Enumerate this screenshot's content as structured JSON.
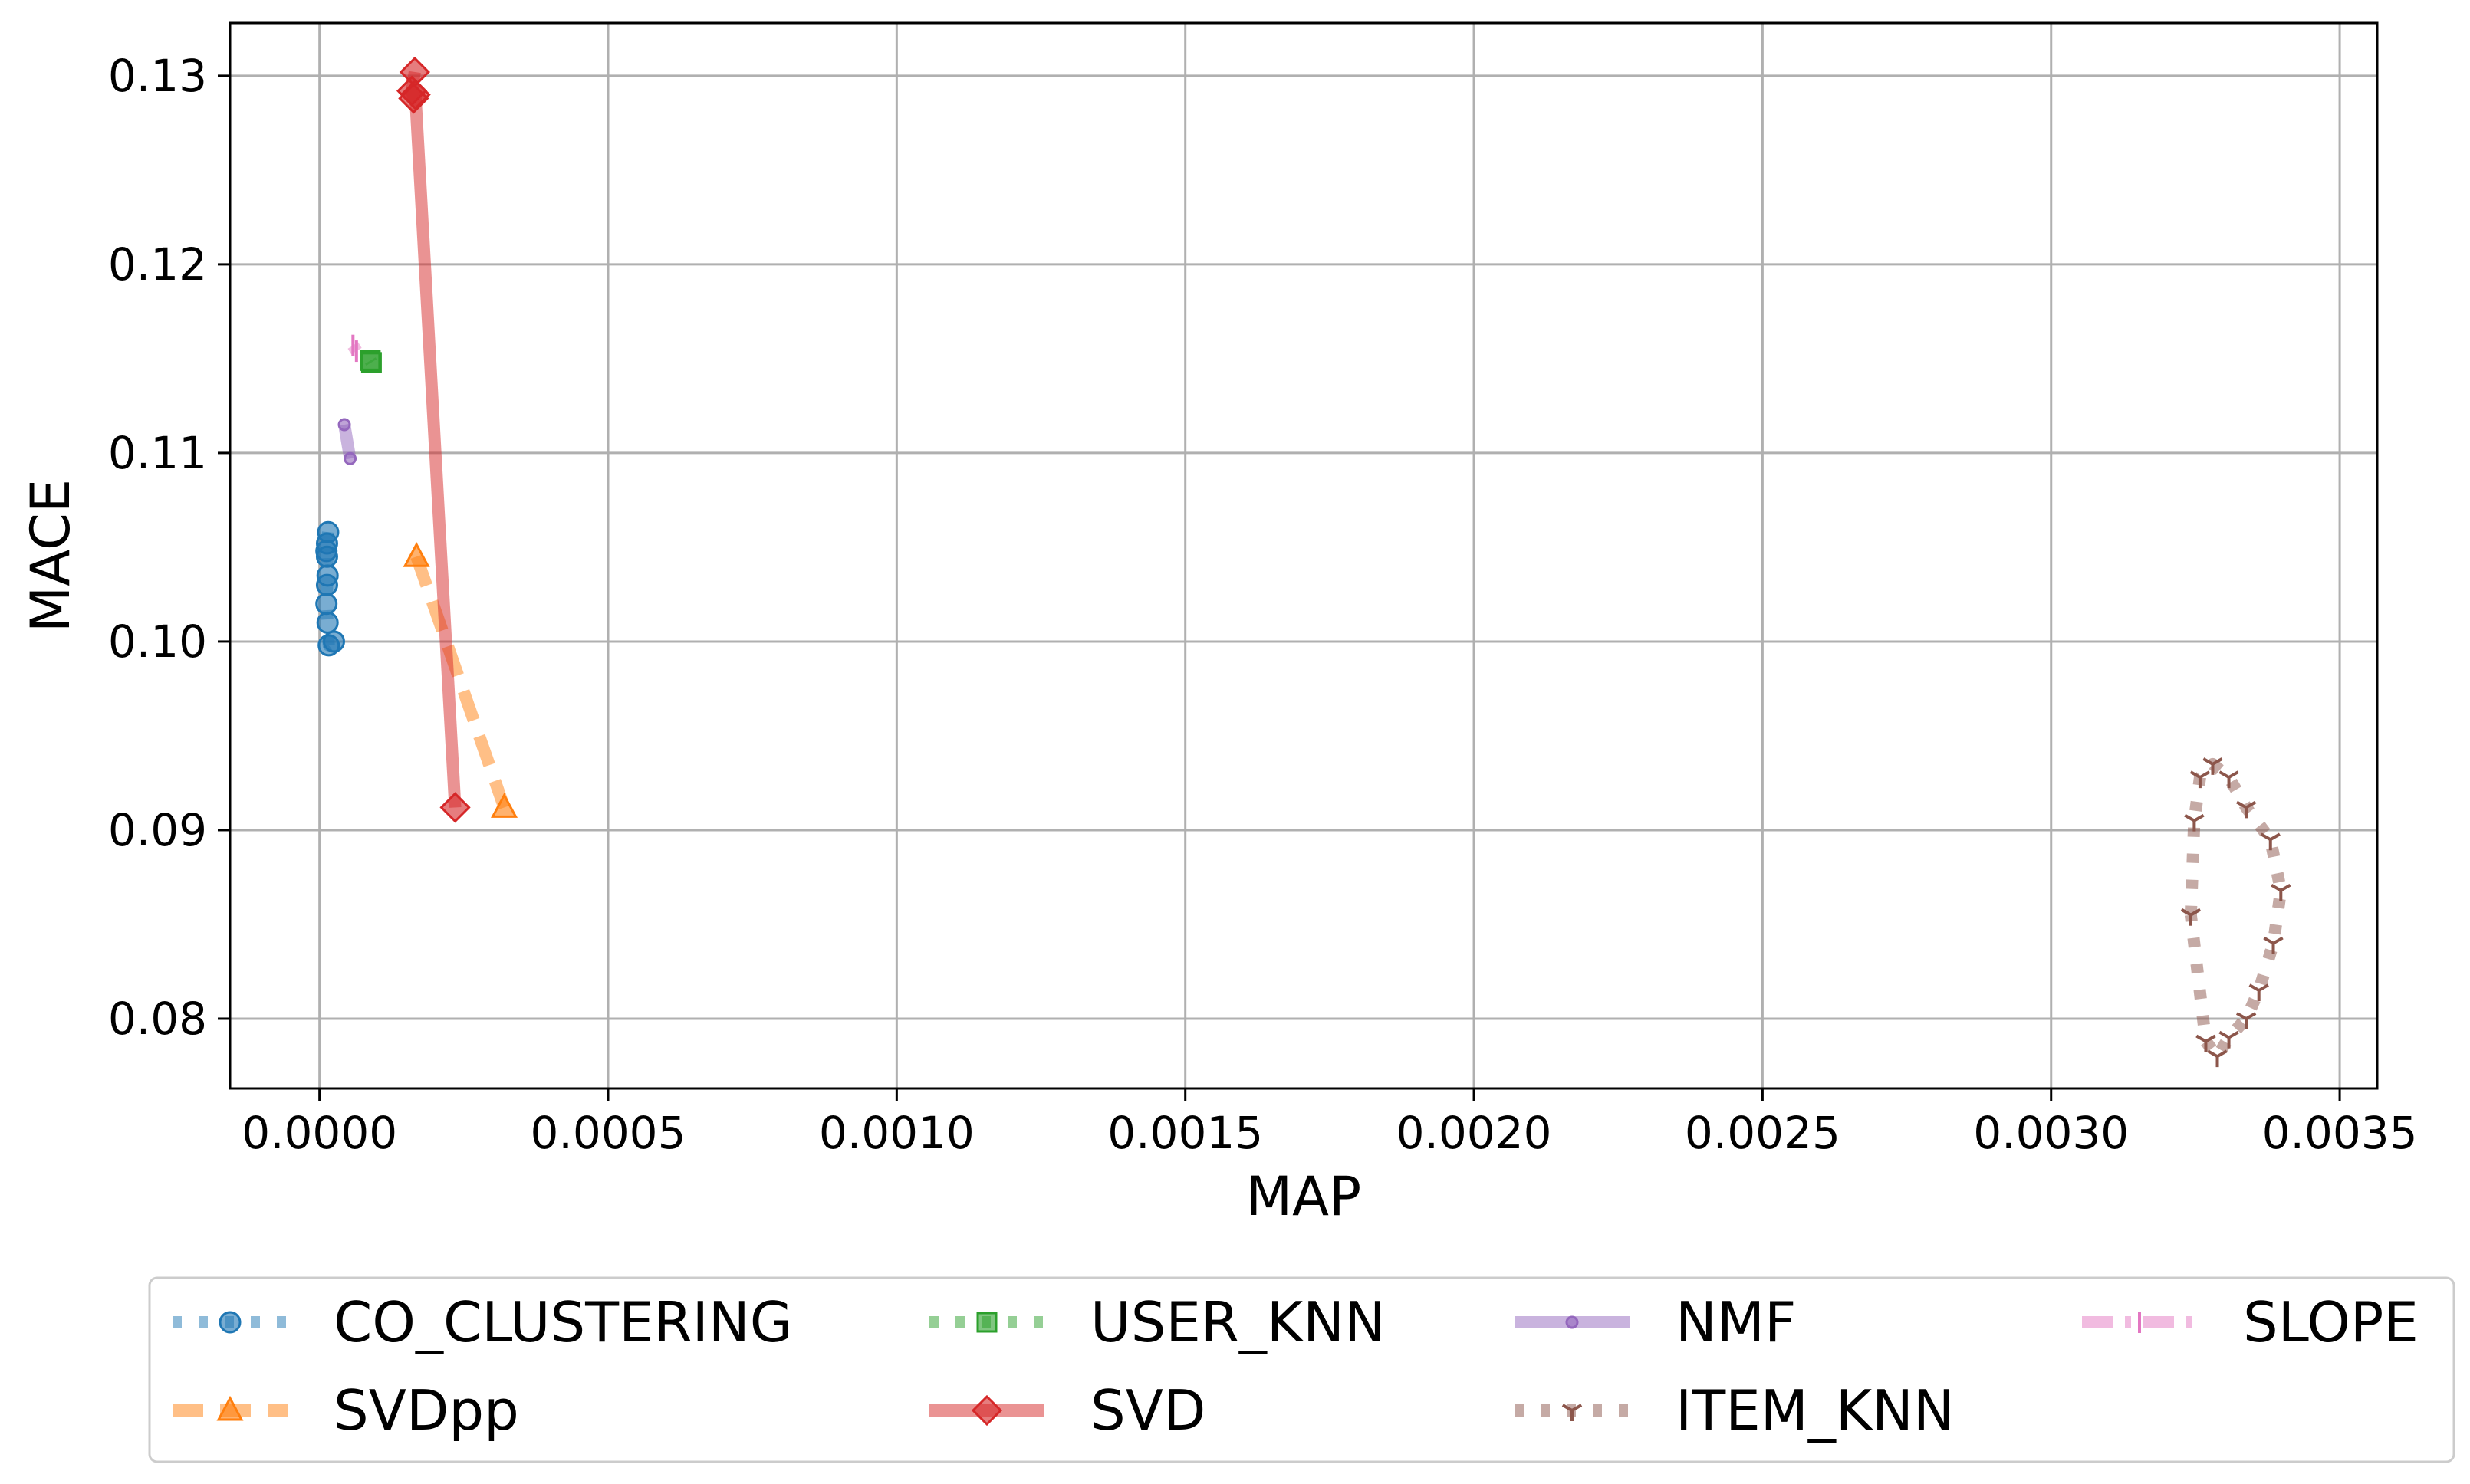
{
  "chart_data": {
    "type": "line",
    "title": "",
    "xlabel": "MAP",
    "ylabel": "MACE",
    "xlim": [
      -0.000155,
      0.003565
    ],
    "ylim": [
      0.0763,
      0.1328
    ],
    "x_ticks": [
      0.0,
      0.0005,
      0.001,
      0.0015,
      0.002,
      0.0025,
      0.003,
      0.0035
    ],
    "x_tick_labels": [
      "0.0000",
      "0.0005",
      "0.0010",
      "0.0015",
      "0.0020",
      "0.0025",
      "0.0030",
      "0.0035"
    ],
    "y_ticks": [
      0.08,
      0.09,
      0.1,
      0.11,
      0.12,
      0.13
    ],
    "y_tick_labels": [
      "0.08",
      "0.09",
      "0.10",
      "0.11",
      "0.12",
      "0.13"
    ],
    "grid": true,
    "legend_position": "below",
    "series": [
      {
        "name": "CO_CLUSTERING",
        "color": "#1f77b4",
        "marker": "circle",
        "linestyle": "dotted",
        "x": [
          1.5e-05,
          1.3e-05,
          1.2e-05,
          1.3e-05,
          1.4e-05,
          1.3e-05,
          1.2e-05,
          1.4e-05,
          1.6e-05,
          2.5e-05
        ],
        "y": [
          0.1058,
          0.1052,
          0.1048,
          0.1045,
          0.1035,
          0.103,
          0.102,
          0.101,
          0.0998,
          0.1
        ]
      },
      {
        "name": "SVDpp",
        "color": "#ff7f0e",
        "marker": "triangle",
        "linestyle": "dashed",
        "x": [
          0.000168,
          0.00032
        ],
        "y": [
          0.1045,
          0.0912
        ]
      },
      {
        "name": "USER_KNN",
        "color": "#2ca02c",
        "marker": "square",
        "linestyle": "dotted",
        "x": [
          8.8e-05,
          9e-05
        ],
        "y": [
          0.1149,
          0.1148
        ]
      },
      {
        "name": "SVD",
        "color": "#d62728",
        "marker": "diamond",
        "linestyle": "solid",
        "x": [
          0.000165,
          0.00016,
          0.000163,
          0.000166,
          0.000235
        ],
        "y": [
          0.1302,
          0.1292,
          0.1288,
          0.129,
          0.0912
        ]
      },
      {
        "name": "NMF",
        "color": "#9467bd",
        "marker": "point",
        "linestyle": "solid",
        "x": [
          4.3e-05,
          5.3e-05
        ],
        "y": [
          0.1115,
          0.1097
        ]
      },
      {
        "name": "ITEM_KNN",
        "color": "#8c564b",
        "marker": "tri",
        "linestyle": "dotted",
        "x": [
          0.003242,
          0.003248,
          0.003258,
          0.00328,
          0.003308,
          0.003338,
          0.00338,
          0.003398,
          0.003385,
          0.00336,
          0.003338,
          0.003308,
          0.003288,
          0.003268,
          0.003242
        ],
        "y": [
          0.0855,
          0.0905,
          0.0928,
          0.0935,
          0.0928,
          0.0912,
          0.0895,
          0.0868,
          0.084,
          0.0815,
          0.08,
          0.079,
          0.078,
          0.0788,
          0.0855
        ]
      },
      {
        "name": "SLOPE",
        "color": "#e377c2",
        "marker": "vline",
        "linestyle": "dashdot",
        "x": [
          5.8e-05,
          6.4e-05
        ],
        "y": [
          0.1157,
          0.1154
        ]
      }
    ]
  }
}
